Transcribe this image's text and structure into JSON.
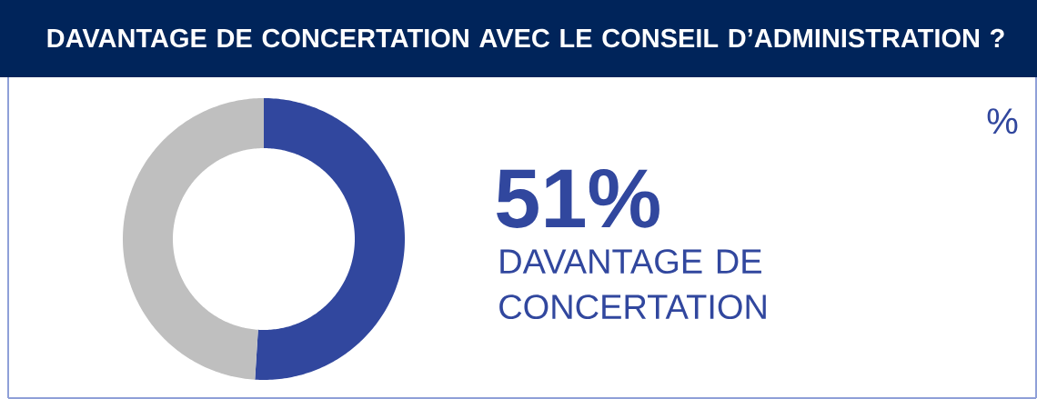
{
  "chart_data": {
    "type": "donut",
    "title": "DAVANTAGE DE CONCERTATION AVEC LE CONSEIL D’ADMINISTRATION ?",
    "categories": [
      "DAVANTAGE DE CONCERTATION",
      null
    ],
    "values": [
      51,
      49
    ],
    "colors": [
      "#31479e",
      "#bfbfbf"
    ],
    "value_labels": [
      "51%",
      null
    ],
    "annotations": [
      "%"
    ]
  }
}
